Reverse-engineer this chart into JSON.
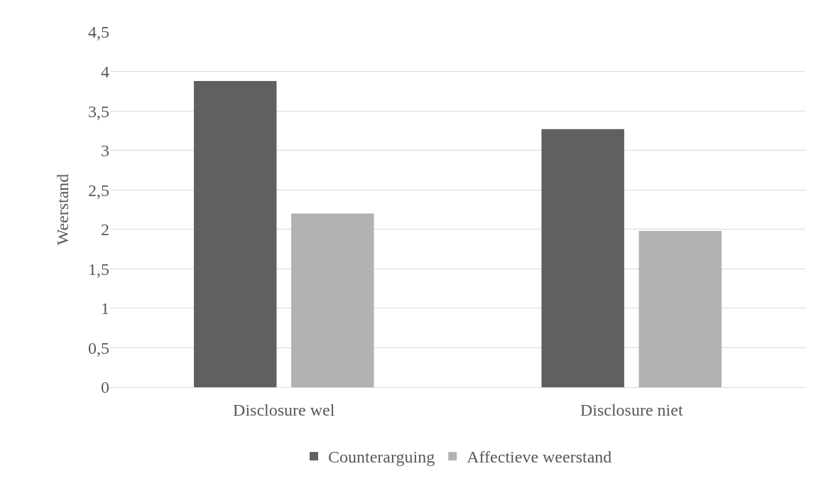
{
  "chart_data": {
    "type": "bar",
    "ylabel": "Weerstand",
    "categories": [
      "Disclosure wel",
      "Disclosure niet"
    ],
    "series": [
      {
        "name": "Counterarguing",
        "color": "#606060",
        "values": [
          3.88,
          3.27
        ]
      },
      {
        "name": "Affectieve weerstand",
        "color": "#b2b2b2",
        "values": [
          2.2,
          1.98
        ]
      }
    ],
    "ylim": [
      0,
      4.5
    ],
    "yticks": [
      0,
      {
        "value": 0.5,
        "label": "0,5"
      },
      1,
      {
        "value": 1.5,
        "label": "1,5"
      },
      2,
      {
        "value": 2.5,
        "label": "2,5"
      },
      3,
      {
        "value": 3.5,
        "label": "3,5"
      },
      4,
      {
        "value": 4.5,
        "label": "4,5"
      }
    ],
    "grid": "y",
    "legend": "bottom"
  }
}
